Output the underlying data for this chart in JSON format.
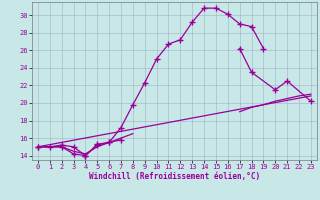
{
  "xlabel": "Windchill (Refroidissement éolien,°C)",
  "bg_color": "#c8e8e8",
  "line_color": "#990099",
  "grid_color": "#aabbcc",
  "x_ticks": [
    0,
    1,
    2,
    3,
    4,
    5,
    6,
    7,
    8,
    9,
    10,
    11,
    12,
    13,
    14,
    15,
    16,
    17,
    18,
    19,
    20,
    21,
    22,
    23
  ],
  "y_ticks": [
    14,
    16,
    18,
    20,
    22,
    24,
    26,
    28,
    30
  ],
  "ylim": [
    13.5,
    31.5
  ],
  "xlim": [
    -0.5,
    23.5
  ],
  "curve1_x": [
    0,
    1,
    2,
    3,
    4,
    5,
    6,
    7,
    8,
    9,
    10,
    11,
    12,
    13,
    14,
    15,
    16,
    17,
    18,
    19
  ],
  "curve1_y": [
    15.0,
    15.0,
    15.2,
    15.0,
    14.0,
    15.3,
    15.5,
    17.2,
    19.8,
    22.3,
    25.0,
    26.7,
    27.2,
    29.2,
    30.8,
    30.8,
    30.1,
    29.0,
    28.7,
    26.2
  ],
  "curve2_x": [
    0,
    2,
    3,
    4,
    5,
    6,
    7,
    17,
    18,
    20,
    21,
    23
  ],
  "curve2_y": [
    15.0,
    15.0,
    14.2,
    14.0,
    15.2,
    15.5,
    15.8,
    26.2,
    23.5,
    21.5,
    22.5,
    20.2
  ],
  "curve3_x": [
    0,
    2,
    3,
    4,
    5,
    6,
    7,
    8,
    17,
    18,
    19,
    20,
    21,
    22,
    23
  ],
  "curve3_y": [
    15.0,
    15.0,
    14.5,
    14.2,
    15.0,
    15.5,
    16.0,
    16.5,
    19.0,
    19.5,
    19.8,
    20.2,
    20.5,
    20.8,
    21.0
  ],
  "curve4_x": [
    0,
    23
  ],
  "curve4_y": [
    15.0,
    20.8
  ]
}
